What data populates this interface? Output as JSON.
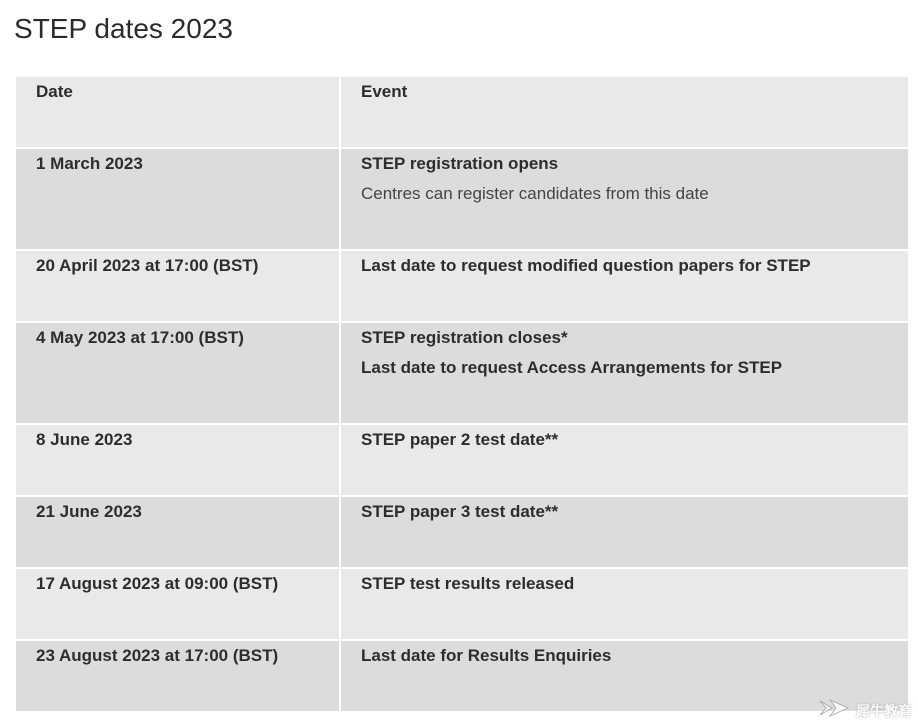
{
  "page": {
    "title": "STEP dates 2023"
  },
  "table": {
    "headers": {
      "date": "Date",
      "event": "Event"
    },
    "rows": [
      {
        "date": "1 March 2023",
        "events": [
          "STEP registration opens"
        ],
        "note": "Centres can register candidates from this date"
      },
      {
        "date": "20 April 2023 at 17:00 (BST)",
        "events": [
          "Last date to request modified question papers for STEP"
        ],
        "note": ""
      },
      {
        "date": "4 May 2023 at 17:00 (BST)",
        "events": [
          "STEP registration closes*",
          "Last date to request Access Arrangements for STEP"
        ],
        "note": ""
      },
      {
        "date": "8 June 2023",
        "events": [
          "STEP paper 2 test date**"
        ],
        "note": ""
      },
      {
        "date": "21 June 2023",
        "events": [
          "STEP paper 3 test date**"
        ],
        "note": ""
      },
      {
        "date": "17 August 2023 at 09:00 (BST)",
        "events": [
          "STEP test results released"
        ],
        "note": ""
      },
      {
        "date": "23 August 2023 at 17:00 (BST)",
        "events": [
          "Last date for Results Enquiries"
        ],
        "note": ""
      }
    ]
  },
  "watermark": {
    "text": "犀牛教育",
    "icon": "rhino-logo-icon"
  },
  "colors": {
    "header_bg": "#e9e9e9",
    "row_dark": "#dcdcdc",
    "row_light": "#e9e9e9",
    "text": "#2d2d2d"
  }
}
